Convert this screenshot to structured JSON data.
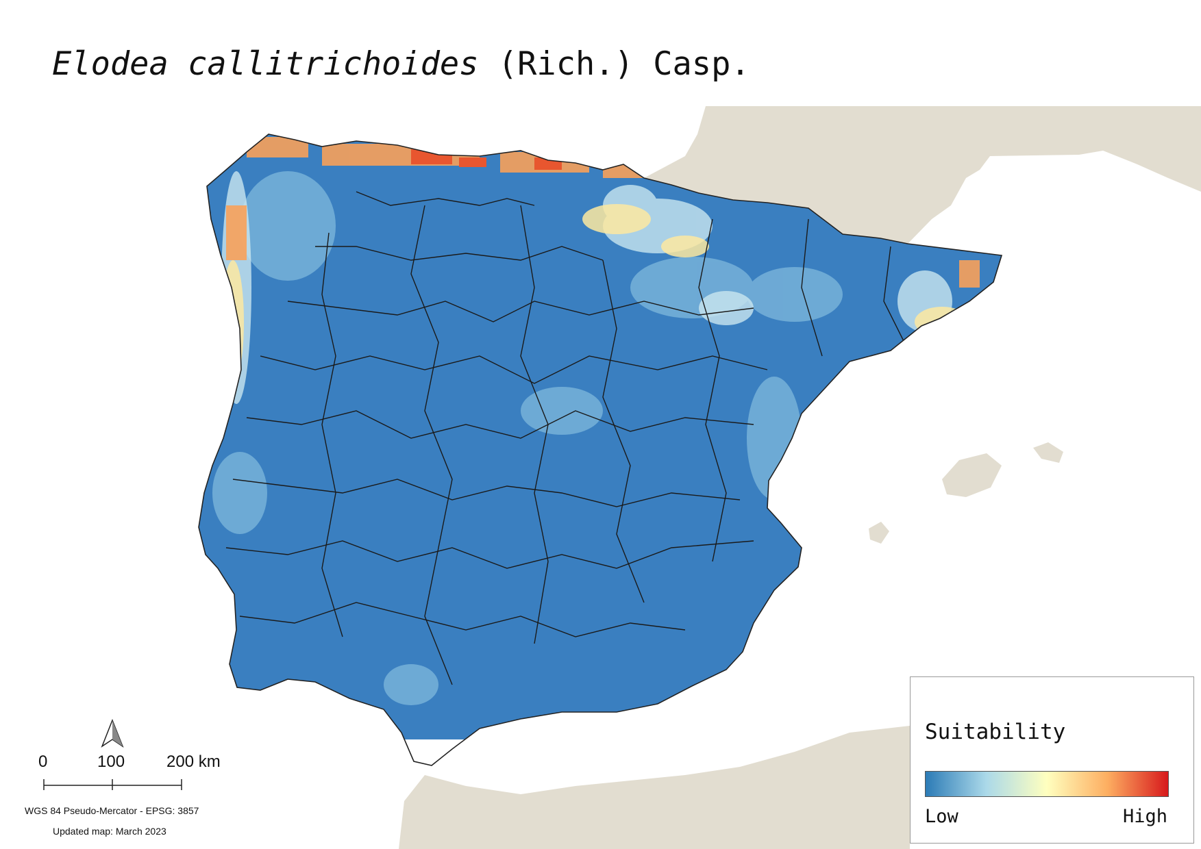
{
  "title": {
    "species": "Elodea callitrichoides",
    "authority": "(Rich.) Casp."
  },
  "legend": {
    "title": "Suitability",
    "low_label": "Low",
    "high_label": "High",
    "gradient": [
      "#2c7bb6",
      "#abd9e9",
      "#ffffbf",
      "#fdae61",
      "#d7191c"
    ]
  },
  "scale_bar": {
    "labels": [
      "0",
      "100",
      "200 km"
    ]
  },
  "north_arrow": {
    "icon": "north-arrow-icon"
  },
  "crs_label": "WGS 84 Pseudo-Mercator  - EPSG: 3857",
  "updated_label": "Updated map: March 2023",
  "colors": {
    "land_background": "#e2ddd0",
    "sea": "#ffffff",
    "low_suitability": "#3a7fc0",
    "province_borders": "#1a1a1a"
  }
}
